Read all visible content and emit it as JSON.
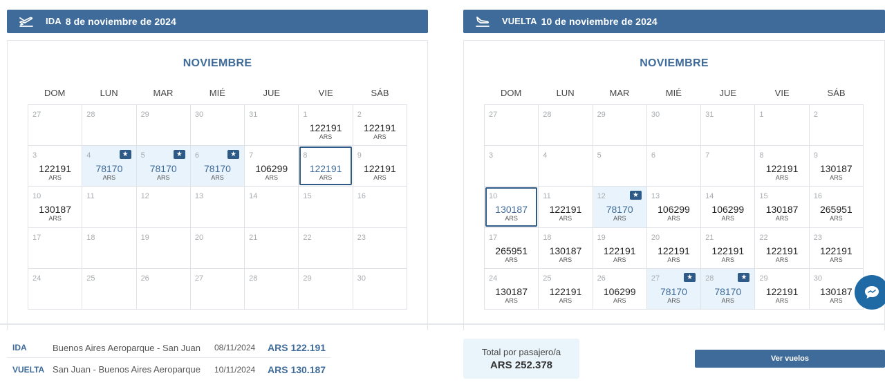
{
  "ida": {
    "label": "IDA",
    "date": "8 de noviembre de 2024",
    "month": "NOVIEMBRE",
    "weekdays": [
      "DOM",
      "LUN",
      "MAR",
      "MIÉ",
      "JUE",
      "VIE",
      "SÁB"
    ],
    "cells": [
      {
        "d": "27",
        "p": "",
        "c": ""
      },
      {
        "d": "28",
        "p": "",
        "c": ""
      },
      {
        "d": "29",
        "p": "",
        "c": ""
      },
      {
        "d": "30",
        "p": "",
        "c": ""
      },
      {
        "d": "31",
        "p": "",
        "c": ""
      },
      {
        "d": "1",
        "p": "122191",
        "c": "ARS"
      },
      {
        "d": "2",
        "p": "122191",
        "c": "ARS"
      },
      {
        "d": "3",
        "p": "122191",
        "c": "ARS"
      },
      {
        "d": "4",
        "p": "78170",
        "c": "ARS",
        "best": true
      },
      {
        "d": "5",
        "p": "78170",
        "c": "ARS",
        "best": true
      },
      {
        "d": "6",
        "p": "78170",
        "c": "ARS",
        "best": true
      },
      {
        "d": "7",
        "p": "106299",
        "c": "ARS"
      },
      {
        "d": "8",
        "p": "122191",
        "c": "ARS",
        "sel": true
      },
      {
        "d": "9",
        "p": "122191",
        "c": "ARS"
      },
      {
        "d": "10",
        "p": "130187",
        "c": "ARS"
      },
      {
        "d": "11",
        "p": "",
        "c": ""
      },
      {
        "d": "12",
        "p": "",
        "c": ""
      },
      {
        "d": "13",
        "p": "",
        "c": ""
      },
      {
        "d": "14",
        "p": "",
        "c": ""
      },
      {
        "d": "15",
        "p": "",
        "c": ""
      },
      {
        "d": "16",
        "p": "",
        "c": ""
      },
      {
        "d": "17",
        "p": "",
        "c": ""
      },
      {
        "d": "18",
        "p": "",
        "c": ""
      },
      {
        "d": "19",
        "p": "",
        "c": ""
      },
      {
        "d": "20",
        "p": "",
        "c": ""
      },
      {
        "d": "21",
        "p": "",
        "c": ""
      },
      {
        "d": "22",
        "p": "",
        "c": ""
      },
      {
        "d": "23",
        "p": "",
        "c": ""
      },
      {
        "d": "24",
        "p": "",
        "c": ""
      },
      {
        "d": "25",
        "p": "",
        "c": ""
      },
      {
        "d": "26",
        "p": "",
        "c": ""
      },
      {
        "d": "27",
        "p": "",
        "c": ""
      },
      {
        "d": "28",
        "p": "",
        "c": ""
      },
      {
        "d": "29",
        "p": "",
        "c": ""
      },
      {
        "d": "30",
        "p": "",
        "c": ""
      }
    ]
  },
  "vuelta": {
    "label": "VUELTA",
    "date": "10 de noviembre de 2024",
    "month": "NOVIEMBRE",
    "weekdays": [
      "DOM",
      "LUN",
      "MAR",
      "MIÉ",
      "JUE",
      "VIE",
      "SÁB"
    ],
    "cells": [
      {
        "d": "27",
        "p": "",
        "c": ""
      },
      {
        "d": "28",
        "p": "",
        "c": ""
      },
      {
        "d": "29",
        "p": "",
        "c": ""
      },
      {
        "d": "30",
        "p": "",
        "c": ""
      },
      {
        "d": "31",
        "p": "",
        "c": ""
      },
      {
        "d": "1",
        "p": "",
        "c": ""
      },
      {
        "d": "2",
        "p": "",
        "c": ""
      },
      {
        "d": "3",
        "p": "",
        "c": ""
      },
      {
        "d": "4",
        "p": "",
        "c": ""
      },
      {
        "d": "5",
        "p": "",
        "c": ""
      },
      {
        "d": "6",
        "p": "",
        "c": ""
      },
      {
        "d": "7",
        "p": "",
        "c": ""
      },
      {
        "d": "8",
        "p": "122191",
        "c": "ARS"
      },
      {
        "d": "9",
        "p": "130187",
        "c": "ARS"
      },
      {
        "d": "10",
        "p": "130187",
        "c": "ARS",
        "sel": true
      },
      {
        "d": "11",
        "p": "122191",
        "c": "ARS"
      },
      {
        "d": "12",
        "p": "78170",
        "c": "ARS",
        "best": true
      },
      {
        "d": "13",
        "p": "106299",
        "c": "ARS"
      },
      {
        "d": "14",
        "p": "106299",
        "c": "ARS"
      },
      {
        "d": "15",
        "p": "130187",
        "c": "ARS"
      },
      {
        "d": "16",
        "p": "265951",
        "c": "ARS"
      },
      {
        "d": "17",
        "p": "265951",
        "c": "ARS"
      },
      {
        "d": "18",
        "p": "130187",
        "c": "ARS"
      },
      {
        "d": "19",
        "p": "122191",
        "c": "ARS"
      },
      {
        "d": "20",
        "p": "122191",
        "c": "ARS"
      },
      {
        "d": "21",
        "p": "122191",
        "c": "ARS"
      },
      {
        "d": "22",
        "p": "122191",
        "c": "ARS"
      },
      {
        "d": "23",
        "p": "122191",
        "c": "ARS"
      },
      {
        "d": "24",
        "p": "130187",
        "c": "ARS"
      },
      {
        "d": "25",
        "p": "122191",
        "c": "ARS"
      },
      {
        "d": "26",
        "p": "106299",
        "c": "ARS"
      },
      {
        "d": "27",
        "p": "78170",
        "c": "ARS",
        "best": true
      },
      {
        "d": "28",
        "p": "78170",
        "c": "ARS",
        "best": true
      },
      {
        "d": "29",
        "p": "122191",
        "c": "ARS"
      },
      {
        "d": "30",
        "p": "130187",
        "c": "ARS"
      }
    ]
  },
  "summary": {
    "ida": {
      "label": "IDA",
      "route": "Buenos Aires Aeroparque - San Juan",
      "date": "08/11/2024",
      "amount": "ARS 122.191"
    },
    "vuelta": {
      "label": "VUELTA",
      "route": "San Juan - Buenos Aires Aeroparque",
      "date": "10/11/2024",
      "amount": "ARS 130.187"
    }
  },
  "total": {
    "label": "Total por pasajero/a",
    "amount": "ARS 252.378"
  },
  "cta": {
    "label": "Ver vuelos"
  },
  "icons": {
    "takeoff": "plane-takeoff-icon",
    "landing": "plane-landing-icon",
    "best_price": "star-badge-icon",
    "chat": "chat-icon"
  },
  "colors": {
    "accent": "#3f6b9a",
    "highlight": "#e8f3fb",
    "selected_border": "#2d5a86"
  }
}
